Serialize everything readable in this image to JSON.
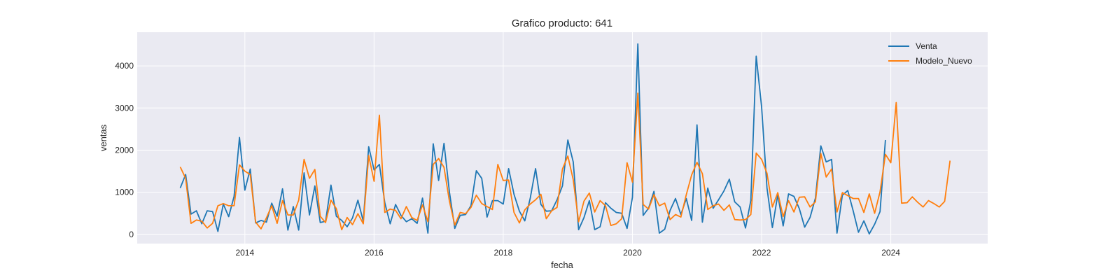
{
  "chart_data": {
    "type": "line",
    "title": "Grafico producto: 641",
    "xlabel": "fecha",
    "ylabel": "ventas",
    "x_ticks": [
      "2014",
      "2016",
      "2018",
      "2020",
      "2022",
      "2024"
    ],
    "y_ticks": [
      0,
      1000,
      2000,
      3000,
      4000
    ],
    "x_range": [
      "2012-05",
      "2025-07"
    ],
    "ylim": [
      -220,
      4800
    ],
    "grid": true,
    "legend_position": "top-right",
    "background": "#eaeaf2",
    "series": [
      {
        "name": "Venta",
        "color": "#1f77b4",
        "x": [
          "2013-01",
          "2013-02",
          "2013-03",
          "2013-04",
          "2013-05",
          "2013-06",
          "2013-07",
          "2013-08",
          "2013-09",
          "2013-10",
          "2013-11",
          "2013-12",
          "2014-01",
          "2014-02",
          "2014-03",
          "2014-04",
          "2014-05",
          "2014-06",
          "2014-07",
          "2014-08",
          "2014-09",
          "2014-10",
          "2014-11",
          "2014-12",
          "2015-01",
          "2015-02",
          "2015-03",
          "2015-04",
          "2015-05",
          "2015-06",
          "2015-07",
          "2015-08",
          "2015-09",
          "2015-10",
          "2015-11",
          "2015-12",
          "2016-01",
          "2016-02",
          "2016-03",
          "2016-04",
          "2016-05",
          "2016-06",
          "2016-07",
          "2016-08",
          "2016-09",
          "2016-10",
          "2016-11",
          "2016-12",
          "2017-01",
          "2017-02",
          "2017-03",
          "2017-04",
          "2017-05",
          "2017-06",
          "2017-07",
          "2017-08",
          "2017-09",
          "2017-10",
          "2017-11",
          "2017-12",
          "2018-01",
          "2018-02",
          "2018-03",
          "2018-04",
          "2018-05",
          "2018-06",
          "2018-07",
          "2018-08",
          "2018-09",
          "2018-10",
          "2018-11",
          "2018-12",
          "2019-01",
          "2019-02",
          "2019-03",
          "2019-04",
          "2019-05",
          "2019-06",
          "2019-07",
          "2019-08",
          "2019-09",
          "2019-10",
          "2019-11",
          "2019-12",
          "2020-01",
          "2020-02",
          "2020-03",
          "2020-04",
          "2020-05",
          "2020-06",
          "2020-07",
          "2020-08",
          "2020-09",
          "2020-10",
          "2020-11",
          "2020-12",
          "2021-01",
          "2021-02",
          "2021-03",
          "2021-04",
          "2021-05",
          "2021-06",
          "2021-07",
          "2021-08",
          "2021-09",
          "2021-10",
          "2021-11",
          "2021-12",
          "2022-01",
          "2022-02",
          "2022-03",
          "2022-04",
          "2022-05",
          "2022-06",
          "2022-07",
          "2022-08",
          "2022-09",
          "2022-10",
          "2022-11",
          "2022-12",
          "2023-01",
          "2023-02",
          "2023-03",
          "2023-04",
          "2023-05",
          "2023-06",
          "2023-07",
          "2023-08",
          "2023-09",
          "2023-10",
          "2023-11",
          "2023-12"
        ],
        "values": [
          1100,
          1420,
          480,
          560,
          250,
          560,
          540,
          70,
          720,
          420,
          900,
          2300,
          1050,
          1550,
          270,
          330,
          290,
          740,
          430,
          1080,
          100,
          660,
          100,
          1460,
          460,
          1150,
          280,
          310,
          1170,
          430,
          330,
          180,
          390,
          810,
          310,
          2080,
          1530,
          1660,
          750,
          250,
          710,
          450,
          300,
          370,
          260,
          860,
          30,
          2150,
          1280,
          2160,
          1010,
          140,
          450,
          470,
          680,
          1510,
          1330,
          410,
          800,
          800,
          720,
          1560,
          950,
          550,
          320,
          850,
          1560,
          710,
          550,
          560,
          820,
          1150,
          2240,
          1720,
          110,
          400,
          800,
          110,
          180,
          750,
          620,
          520,
          500,
          140,
          880,
          4520,
          450,
          620,
          1020,
          30,
          120,
          570,
          850,
          470,
          850,
          330,
          2600,
          290,
          1100,
          620,
          820,
          1030,
          1310,
          770,
          650,
          150,
          800,
          4230,
          3030,
          1100,
          160,
          940,
          200,
          960,
          900,
          610,
          170,
          400,
          860,
          2100,
          1720,
          1780,
          30,
          930,
          1040,
          560,
          50,
          320,
          10,
          240,
          540,
          2240
        ]
      },
      {
        "name": "Modelo_Nuevo",
        "color": "#ff7f0e",
        "x": [
          "2013-01",
          "2013-02",
          "2013-03",
          "2013-04",
          "2013-05",
          "2013-06",
          "2013-07",
          "2013-08",
          "2013-09",
          "2013-10",
          "2013-11",
          "2013-12",
          "2014-01",
          "2014-02",
          "2014-03",
          "2014-04",
          "2014-05",
          "2014-06",
          "2014-07",
          "2014-08",
          "2014-09",
          "2014-10",
          "2014-11",
          "2014-12",
          "2015-01",
          "2015-02",
          "2015-03",
          "2015-04",
          "2015-05",
          "2015-06",
          "2015-07",
          "2015-08",
          "2015-09",
          "2015-10",
          "2015-11",
          "2015-12",
          "2016-01",
          "2016-02",
          "2016-03",
          "2016-04",
          "2016-05",
          "2016-06",
          "2016-07",
          "2016-08",
          "2016-09",
          "2016-10",
          "2016-11",
          "2016-12",
          "2017-01",
          "2017-02",
          "2017-03",
          "2017-04",
          "2017-05",
          "2017-06",
          "2017-07",
          "2017-08",
          "2017-09",
          "2017-10",
          "2017-11",
          "2017-12",
          "2018-01",
          "2018-02",
          "2018-03",
          "2018-04",
          "2018-05",
          "2018-06",
          "2018-07",
          "2018-08",
          "2018-09",
          "2018-10",
          "2018-11",
          "2018-12",
          "2019-01",
          "2019-02",
          "2019-03",
          "2019-04",
          "2019-05",
          "2019-06",
          "2019-07",
          "2019-08",
          "2019-09",
          "2019-10",
          "2019-11",
          "2019-12",
          "2020-01",
          "2020-02",
          "2020-03",
          "2020-04",
          "2020-05",
          "2020-06",
          "2020-07",
          "2020-08",
          "2020-09",
          "2020-10",
          "2020-11",
          "2020-12",
          "2021-01",
          "2021-02",
          "2021-03",
          "2021-04",
          "2021-05",
          "2021-06",
          "2021-07",
          "2021-08",
          "2021-09",
          "2021-10",
          "2021-11",
          "2021-12",
          "2022-01",
          "2022-02",
          "2022-03",
          "2022-04",
          "2022-05",
          "2022-06",
          "2022-07",
          "2022-08",
          "2022-09",
          "2022-10",
          "2022-11",
          "2022-12",
          "2023-01",
          "2023-02",
          "2023-03",
          "2023-04",
          "2023-05",
          "2023-06",
          "2023-07",
          "2023-08",
          "2023-09",
          "2023-10",
          "2023-11",
          "2023-12",
          "2024-01",
          "2024-02",
          "2024-03",
          "2024-04",
          "2024-05",
          "2024-06",
          "2024-07",
          "2024-08",
          "2024-09",
          "2024-10",
          "2024-11",
          "2024-12"
        ],
        "values": [
          1600,
          1330,
          260,
          340,
          310,
          150,
          260,
          680,
          730,
          680,
          680,
          1650,
          1500,
          1420,
          290,
          130,
          390,
          680,
          260,
          800,
          460,
          460,
          810,
          1780,
          1330,
          1540,
          430,
          280,
          810,
          610,
          110,
          400,
          230,
          490,
          250,
          1870,
          1260,
          2830,
          520,
          600,
          570,
          370,
          660,
          400,
          330,
          700,
          300,
          1660,
          1800,
          1590,
          790,
          220,
          520,
          490,
          640,
          930,
          730,
          660,
          590,
          1660,
          1280,
          1290,
          520,
          270,
          580,
          720,
          820,
          950,
          370,
          560,
          640,
          1550,
          1860,
          1300,
          300,
          790,
          980,
          530,
          800,
          680,
          210,
          250,
          370,
          1700,
          1240,
          3350,
          710,
          600,
          940,
          680,
          740,
          350,
          470,
          410,
          940,
          1410,
          1710,
          1440,
          590,
          680,
          720,
          570,
          700,
          350,
          340,
          350,
          470,
          1930,
          1780,
          1450,
          650,
          990,
          420,
          800,
          530,
          880,
          890,
          650,
          770,
          1920,
          1360,
          1550,
          530,
          990,
          920,
          850,
          850,
          520,
          960,
          500,
          1010,
          1900,
          1700,
          3130,
          740,
          750,
          890,
          760,
          650,
          800,
          730,
          650,
          780,
          1750
        ]
      }
    ]
  }
}
